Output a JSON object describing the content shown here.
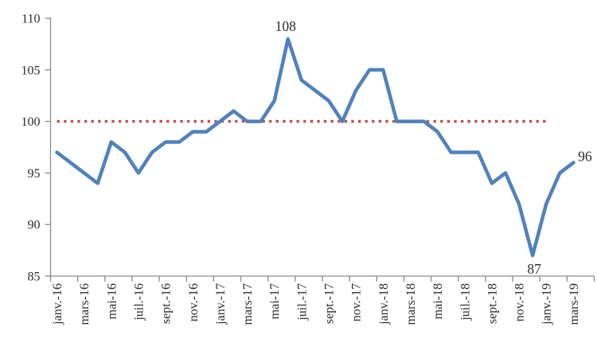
{
  "chart_data": {
    "type": "line",
    "title": "",
    "xlabel": "",
    "ylabel": "",
    "ylim": [
      85,
      110
    ],
    "yticks": [
      85,
      90,
      95,
      100,
      105,
      110
    ],
    "grid": "none",
    "legend": "none",
    "x_tick_labels": [
      "janv.-16",
      "mars-16",
      "mai-16",
      "juil.-16",
      "sept.-16",
      "nov.-16",
      "janv.-17",
      "mars-17",
      "mai-17",
      "juil.-17",
      "sept.-17",
      "nov.-17",
      "janv.-18",
      "mars-18",
      "mai-18",
      "juil.-18",
      "sept.-18",
      "nov.-18",
      "janv.-19",
      "mars-19"
    ],
    "categories": [
      "janv.-16",
      "févr.-16",
      "mars-16",
      "avr.-16",
      "mai-16",
      "juin-16",
      "juil.-16",
      "août-16",
      "sept.-16",
      "oct.-16",
      "nov.-16",
      "déc.-16",
      "janv.-17",
      "févr.-17",
      "mars-17",
      "avr.-17",
      "mai-17",
      "juin-17",
      "juil.-17",
      "août-17",
      "sept.-17",
      "oct.-17",
      "nov.-17",
      "déc.-17",
      "janv.-18",
      "févr.-18",
      "mars-18",
      "avr.-18",
      "mai-18",
      "juin-18",
      "juil.-18",
      "août-18",
      "sept.-18",
      "oct.-18",
      "nov.-18",
      "déc.-18",
      "janv.-19",
      "févr.-19",
      "mars-19"
    ],
    "series": [
      {
        "name": "index-line",
        "color": "#4F81BD",
        "style": "solid",
        "values": [
          97,
          96,
          95,
          94,
          98,
          97,
          95,
          97,
          98,
          98,
          99,
          99,
          100,
          101,
          100,
          100,
          102,
          108,
          104,
          103,
          102,
          100,
          103,
          105,
          105,
          100,
          100,
          100,
          99,
          97,
          97,
          97,
          94,
          95,
          92,
          87,
          92,
          95,
          96
        ]
      },
      {
        "name": "reference-100",
        "color": "#C0504D",
        "style": "dotted",
        "value": 100,
        "start_category": "janv.-16",
        "end_category": "janv.-19"
      }
    ],
    "annotations": [
      {
        "text": "108",
        "category": "juin-17",
        "value": 108,
        "position": "above"
      },
      {
        "text": "87",
        "category": "déc.-18",
        "value": 87,
        "position": "below"
      },
      {
        "text": "96",
        "category": "mars-19",
        "value": 96,
        "position": "right"
      }
    ]
  },
  "colors": {
    "line": "#4F81BD",
    "reference": "#C0504D",
    "axis": "#8C8C8C",
    "tick_text": "#2b2b2b",
    "annotation_text": "#1a1a1a",
    "background": "#FFFFFF"
  }
}
